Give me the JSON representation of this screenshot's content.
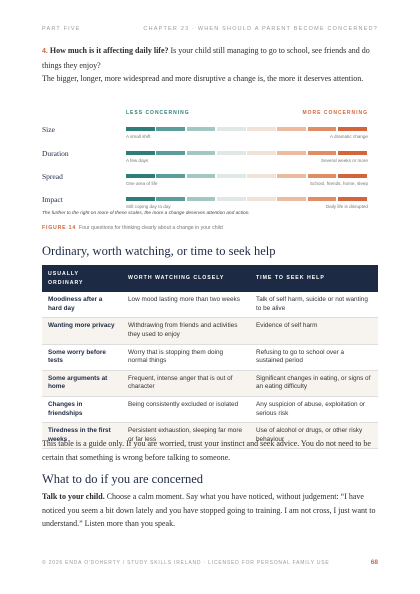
{
  "header": {
    "left": "PART FIVE",
    "right": "CHAPTER 23 · WHEN SHOULD A PARENT BECOME CONCERNED?"
  },
  "item": {
    "number": "4.",
    "question": "How much is it affecting daily life?",
    "text": "Is your child still managing to go to school, see friends and do things they enjoy?"
  },
  "intro": "The bigger, longer, more widespread and more disruptive a change is, the more it deserves attention.",
  "figure": {
    "less": "LESS CONCERNING",
    "more": "MORE CONCERNING",
    "rows": [
      {
        "label": "Size",
        "low": "A small shift",
        "high": "A dramatic change"
      },
      {
        "label": "Duration",
        "low": "A few days",
        "high": "Several weeks or more"
      },
      {
        "label": "Spread",
        "low": "One area of life",
        "high": "School, friends, home, sleep"
      },
      {
        "label": "Impact",
        "low": "Still coping day to day",
        "high": "Daily life is disrupted"
      }
    ],
    "note": "The further to the right on more of these scales, the more a change deserves attention and action.",
    "caption_label": "FIGURE 14",
    "caption": "Four questions for thinking clearly about a change in your child"
  },
  "section1": {
    "heading": "Ordinary, worth watching, or time to seek help"
  },
  "table": {
    "headers": [
      "USUALLY ORDINARY",
      "WORTH WATCHING CLOSELY",
      "TIME TO SEEK HELP"
    ],
    "rows": [
      [
        "Moodiness after a hard day",
        "Low mood lasting more than two weeks",
        "Talk of self harm, suicide or not wanting to be alive"
      ],
      [
        "Wanting more privacy",
        "Withdrawing from friends and activities they used to enjoy",
        "Evidence of self harm"
      ],
      [
        "Some worry before tests",
        "Worry that is stopping them doing normal things",
        "Refusing to go to school over a sustained period"
      ],
      [
        "Some arguments at home",
        "Frequent, intense anger that is out of character",
        "Significant changes in eating, or signs of an eating difficulty"
      ],
      [
        "Changes in friendships",
        "Being consistently excluded or isolated",
        "Any suspicion of abuse, exploitation or serious risk"
      ],
      [
        "Tiredness in the first weeks",
        "Persistent exhaustion, sleeping far more or far less",
        "Use of alcohol or drugs, or other risky behaviour"
      ]
    ]
  },
  "table_note": "This table is a guide only. If you are worried, trust your instinct and seek advice. You do not need to be certain that something is wrong before talking to someone.",
  "section2": {
    "heading": "What to do if you are concerned",
    "lead": "Talk to your child.",
    "text": "Choose a calm moment. Say what you have noticed, without judgement: “I have noticed you seem a bit down lately and you have stopped going to training. I am not cross, I just want to understand.” Listen more than you speak."
  },
  "footer": {
    "left": "© 2026 ENDA O'DOHERTY / STUDY SKILLS IRELAND · LICENSED FOR PERSONAL FAMILY USE",
    "page": "68"
  }
}
